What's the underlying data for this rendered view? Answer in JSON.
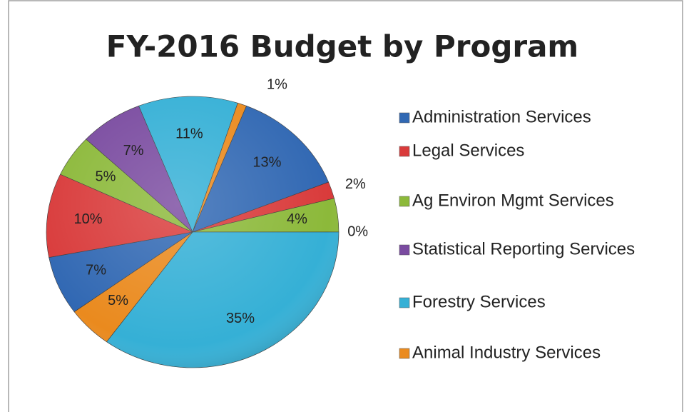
{
  "chart_data": {
    "type": "pie",
    "title": "FY-2016 Budget by Program",
    "categories": [
      "Administration Services",
      "Legal Services",
      "Ag Environ Mgmt Services",
      "Statistical Reporting Services",
      "Forestry Services",
      "Animal Industry Services",
      null,
      null,
      null,
      null,
      null,
      null
    ],
    "values": [
      13,
      2,
      4,
      0,
      35,
      5,
      7,
      10,
      5,
      7,
      11,
      1
    ],
    "value_labels": [
      "13%",
      "2%",
      "4%",
      "0%",
      "35%",
      "5%",
      "7%",
      "10%",
      "5%",
      "7%",
      "11%",
      "1%"
    ],
    "colors": [
      "#3168b3",
      "#d93b3b",
      "#8cb93a",
      "#7a4ba0",
      "#35b0d6",
      "#ea8a1e",
      "#3168b3",
      "#d93b3b",
      "#8cb93a",
      "#7a4ba0",
      "#35b0d6",
      "#ea8a1e"
    ],
    "legend": "right"
  }
}
